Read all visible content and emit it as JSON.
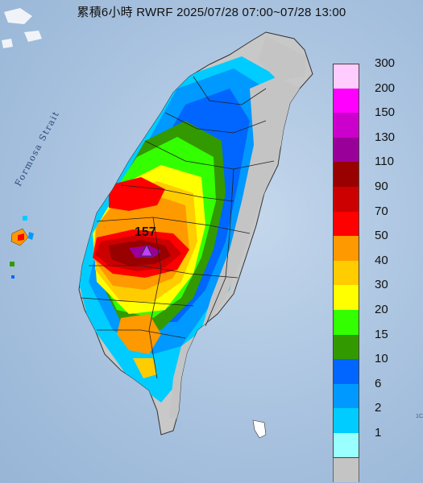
{
  "header": {
    "title": "累積6小時 RWRF 2025/07/28 07:00~07/28 13:00"
  },
  "map": {
    "sea_label": "Formosa Strait",
    "max_value_label": "157",
    "max_marker_color": "#c040ff",
    "corner_text": "1C"
  },
  "legend": {
    "items": [
      {
        "label": "300",
        "color": "#ffccff"
      },
      {
        "label": "200",
        "color": "#ff00ff"
      },
      {
        "label": "150",
        "color": "#cc00cc"
      },
      {
        "label": "130",
        "color": "#990099"
      },
      {
        "label": "110",
        "color": "#990000"
      },
      {
        "label": "90",
        "color": "#cc0000"
      },
      {
        "label": "70",
        "color": "#ff0000"
      },
      {
        "label": "50",
        "color": "#ff9900"
      },
      {
        "label": "40",
        "color": "#ffcc00"
      },
      {
        "label": "30",
        "color": "#ffff00"
      },
      {
        "label": "20",
        "color": "#33ff00"
      },
      {
        "label": "15",
        "color": "#339900"
      },
      {
        "label": "10",
        "color": "#0066ff"
      },
      {
        "label": "6",
        "color": "#0099ff"
      },
      {
        "label": "2",
        "color": "#00ccff"
      },
      {
        "label": "1",
        "color": "#99ffff"
      },
      {
        "label": "",
        "color": "#c4c4c4"
      }
    ]
  }
}
